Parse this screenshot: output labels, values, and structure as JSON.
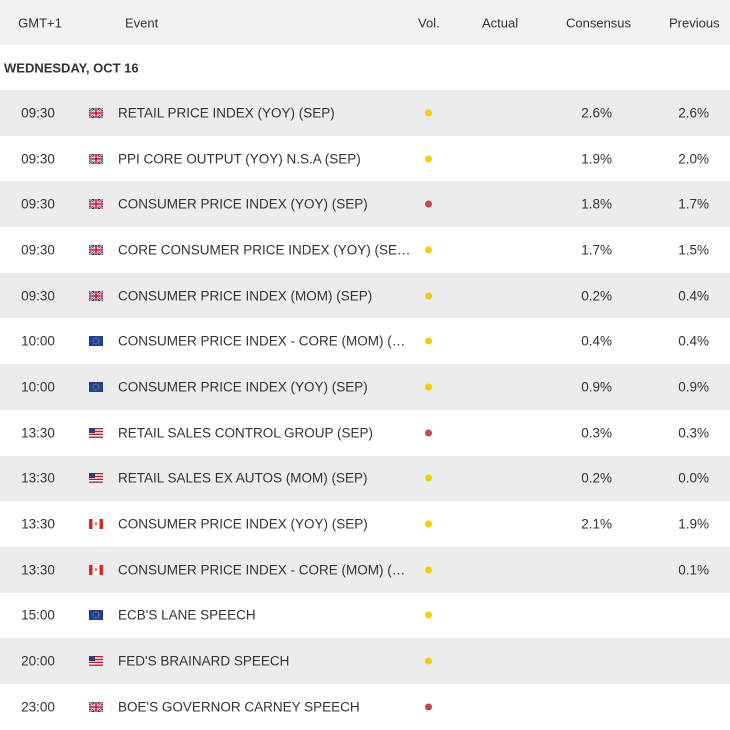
{
  "header": {
    "columns": [
      "GMT+1",
      "Event",
      "Vol.",
      "Actual",
      "Consensus",
      "Previous"
    ]
  },
  "date": "WEDNESDAY, OCT 16",
  "rows": [
    {
      "time": "09:30",
      "event": "RETAIL PRICE INDEX (YOY) (SEP)",
      "consensus": "2.6%",
      "previous": "2.6%"
    },
    {
      "time": "09:30",
      "event": "PPI CORE OUTPUT (YOY) N.S.A (SEP)",
      "consensus": "1.9%",
      "previous": "2.0%"
    },
    {
      "time": "09:30",
      "event": "CONSUMER PRICE INDEX (YOY) (SEP)",
      "consensus": "1.8%",
      "previous": "1.7%"
    },
    {
      "time": "09:30",
      "event": "CORE CONSUMER PRICE INDEX (YOY) (SE…",
      "consensus": "1.7%",
      "previous": "1.5%"
    },
    {
      "time": "09:30",
      "event": "CONSUMER PRICE INDEX (MOM) (SEP)",
      "consensus": "0.2%",
      "previous": "0.4%"
    },
    {
      "time": "10:00",
      "event": "CONSUMER PRICE INDEX - CORE (MOM) (…",
      "consensus": "0.4%",
      "previous": "0.4%"
    },
    {
      "time": "10:00",
      "event": "CONSUMER PRICE INDEX (YOY) (SEP)",
      "consensus": "0.9%",
      "previous": "0.9%"
    },
    {
      "time": "13:30",
      "event": "RETAIL SALES CONTROL GROUP (SEP)",
      "consensus": "0.3%",
      "previous": "0.3%"
    },
    {
      "time": "13:30",
      "event": "RETAIL SALES EX AUTOS (MOM) (SEP)",
      "consensus": "0.2%",
      "previous": "0.0%"
    },
    {
      "time": "13:30",
      "event": "CONSUMER PRICE INDEX (YOY) (SEP)",
      "consensus": "2.1%",
      "previous": "1.9%"
    },
    {
      "time": "13:30",
      "event": "CONSUMER PRICE INDEX - CORE (MOM) (…",
      "previous": "0.1%"
    },
    {
      "time": "15:00",
      "event": "ECB'S LANE SPEECH"
    },
    {
      "time": "20:00",
      "event": "FED'S BRAINARD SPEECH"
    },
    {
      "time": "23:00",
      "event": "BOE'S GOVERNOR CARNEY SPEECH"
    }
  ]
}
